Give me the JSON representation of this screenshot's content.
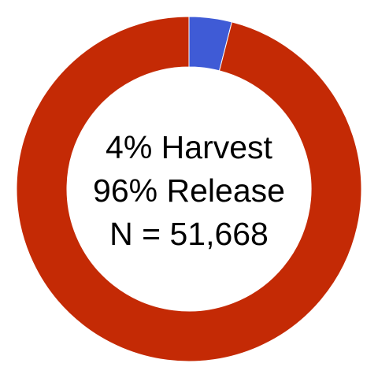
{
  "chart_data": {
    "type": "pie",
    "categories": [
      "Harvest",
      "Release"
    ],
    "values": [
      4,
      96
    ],
    "colors": [
      "#3f5bd6",
      "#c42a05"
    ],
    "style": "donut",
    "center_text": [
      "4% Harvest",
      "96% Release",
      "N = 51,668"
    ]
  }
}
